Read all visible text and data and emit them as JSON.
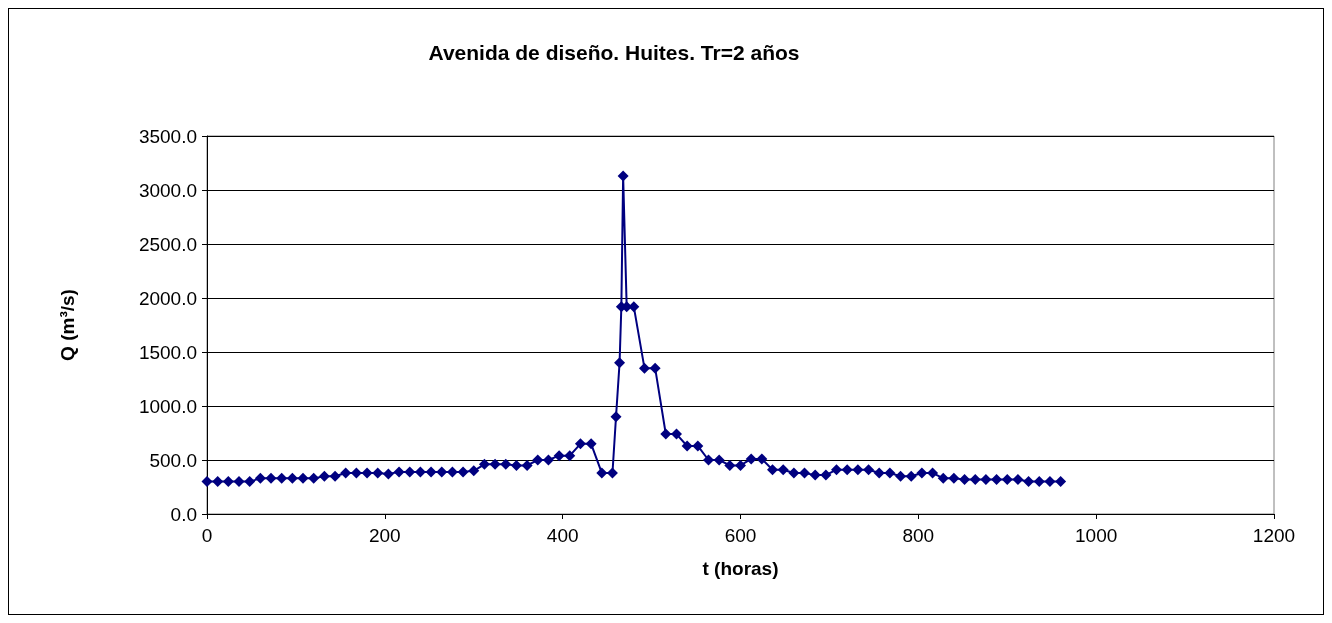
{
  "chart_data": {
    "type": "line",
    "title": "Avenida de diseño. Huites. Tr=2 años",
    "xlabel": "t (horas)",
    "ylabel": "Q (m³/s)",
    "x": [
      0,
      12,
      24,
      36,
      48,
      60,
      72,
      84,
      96,
      108,
      120,
      132,
      144,
      156,
      168,
      180,
      192,
      204,
      216,
      228,
      240,
      252,
      264,
      276,
      288,
      300,
      312,
      324,
      336,
      348,
      360,
      372,
      384,
      396,
      408,
      420,
      432,
      444,
      456,
      460,
      464,
      466,
      468,
      472,
      480,
      492,
      504,
      516,
      528,
      540,
      552,
      564,
      576,
      588,
      600,
      612,
      624,
      636,
      648,
      660,
      672,
      684,
      696,
      708,
      720,
      732,
      744,
      756,
      768,
      780,
      792,
      804,
      816,
      828,
      840,
      852,
      864,
      876,
      888,
      900,
      912,
      924,
      936,
      948,
      960
    ],
    "series": [
      {
        "color": "#000080",
        "values": [
          300,
          300,
          300,
          300,
          300,
          330,
          330,
          330,
          330,
          330,
          330,
          350,
          350,
          380,
          380,
          380,
          380,
          370,
          390,
          390,
          390,
          390,
          390,
          390,
          390,
          400,
          460,
          460,
          460,
          450,
          450,
          500,
          500,
          540,
          540,
          650,
          650,
          380,
          380,
          900,
          1400,
          1920,
          3130,
          1920,
          1920,
          1350,
          1350,
          740,
          740,
          630,
          630,
          500,
          500,
          450,
          450,
          510,
          510,
          410,
          410,
          380,
          380,
          360,
          360,
          410,
          410,
          410,
          410,
          380,
          380,
          350,
          350,
          380,
          380,
          330,
          330,
          320,
          320,
          320,
          320,
          320,
          320,
          300,
          300,
          300,
          300
        ]
      }
    ],
    "xlim": [
      0,
      1200
    ],
    "xticks": [
      0,
      200,
      400,
      600,
      800,
      1000,
      1200
    ],
    "ylim": [
      0,
      3500
    ],
    "yticks": [
      {
        "value": 0,
        "label": "0.0"
      },
      {
        "value": 500,
        "label": "500.0"
      },
      {
        "value": 1000,
        "label": "1000.0"
      },
      {
        "value": 1500,
        "label": "1500.0"
      },
      {
        "value": 2000,
        "label": "2000.0"
      },
      {
        "value": 2500,
        "label": "2500.0"
      },
      {
        "value": 3000,
        "label": "3000.0"
      },
      {
        "value": 3500,
        "label": "3500.0"
      }
    ],
    "grid": "y",
    "marker": "diamond",
    "line_style": "solid"
  }
}
